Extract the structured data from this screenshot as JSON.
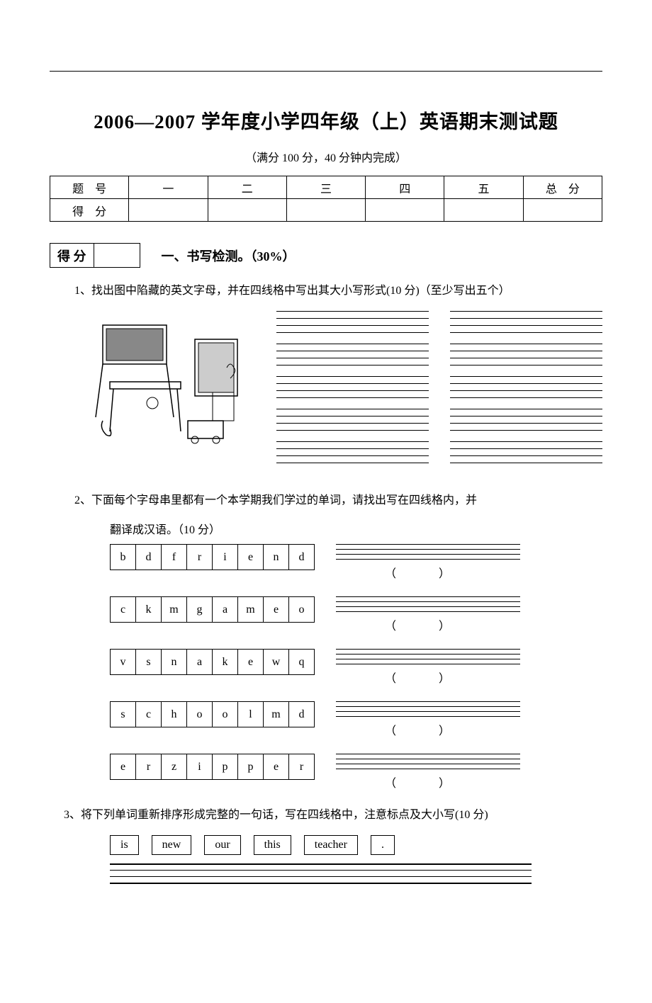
{
  "title": "2006—2007 学年度小学四年级（上）英语期末测试题",
  "subtitle": "（满分 100 分，40 分钟内完成）",
  "score_table": {
    "row1": [
      "题　号",
      "一",
      "二",
      "三",
      "四",
      "五",
      "总　分"
    ],
    "row2": [
      "得　分",
      "",
      "",
      "",
      "",
      "",
      ""
    ]
  },
  "score_box_label": "得 分",
  "section1_title": "一、书写检测。（30%）",
  "q1_text": "1、找出图中陷藏的英文字母，并在四线格中写出其大小写形式(10 分)（至少写出五个）",
  "q2_text": "2、下面每个字母串里都有一个本学期我们学过的单词，请找出写在四线格内，并",
  "q2_cont": "翻译成汉语。（10 分）",
  "letter_rows": [
    [
      "b",
      "d",
      "f",
      "r",
      "i",
      "e",
      "n",
      "d"
    ],
    [
      "c",
      "k",
      "m",
      "g",
      "a",
      "m",
      "e",
      "o"
    ],
    [
      "v",
      "s",
      "n",
      "a",
      "k",
      "e",
      "w",
      "q"
    ],
    [
      "s",
      "c",
      "h",
      "o",
      "o",
      "l",
      "m",
      "d"
    ],
    [
      "e",
      "r",
      "z",
      "i",
      "p",
      "p",
      "e",
      "r"
    ]
  ],
  "paren_open": "（",
  "paren_close": "）",
  "q3_text": "3、将下列单词重新排序形成完整的一句话，写在四线格中，注意标点及大小写(10 分)",
  "q3_words": [
    "is",
    "new",
    "our",
    "this",
    "teacher",
    "."
  ],
  "colors": {
    "text": "#000000",
    "bg": "#ffffff",
    "border": "#000000"
  }
}
